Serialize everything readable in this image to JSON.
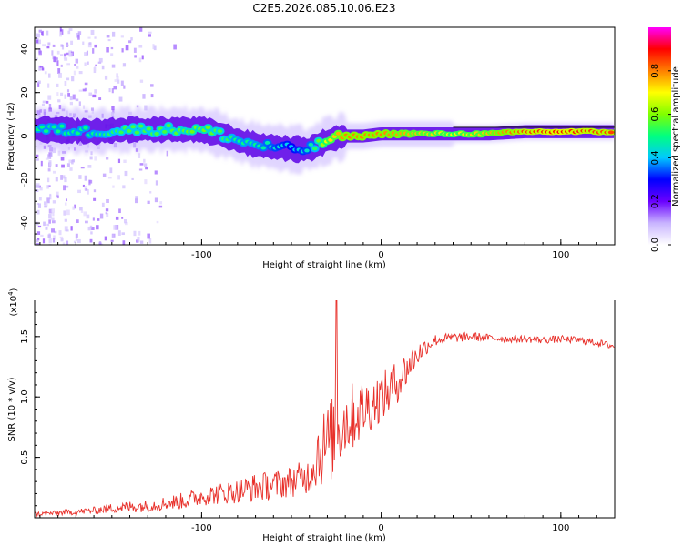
{
  "title": "C2E5.2026.085.10.06.E23",
  "chart_data": [
    {
      "type": "heatmap",
      "xlabel": "Height of straight line (km)",
      "ylabel": "Frequency (Hz)",
      "xlim": [
        -193,
        130
      ],
      "ylim": [
        -50,
        50
      ],
      "xticks": [
        -100,
        0,
        100
      ],
      "yticks": [
        -40,
        -20,
        0,
        20,
        40
      ],
      "colorbar": {
        "label": "Normalized spectral amplitude",
        "range": [
          0,
          1
        ],
        "ticks": [
          0.0,
          0.2,
          0.4,
          0.6,
          0.8
        ],
        "colors": [
          "#ffffff",
          "#c8b4ff",
          "#6a00ff",
          "#0000ff",
          "#00c8ff",
          "#00ff80",
          "#80ff00",
          "#ffff00",
          "#ff8000",
          "#ff0000",
          "#ff00ff"
        ]
      },
      "ridge": {
        "x": [
          -185,
          -160,
          -140,
          -120,
          -100,
          -90,
          -80,
          -70,
          -60,
          -50,
          -40,
          -30,
          -20,
          -10,
          0,
          20,
          40,
          60,
          80,
          100,
          120,
          130
        ],
        "freq": [
          3,
          2,
          3,
          3,
          3,
          1,
          -2,
          -4,
          -5,
          -6,
          -6,
          -2,
          0,
          0,
          1,
          1,
          1,
          1,
          2,
          2,
          2,
          2
        ],
        "amplitude": [
          0.5,
          0.5,
          0.55,
          0.55,
          0.6,
          0.55,
          0.5,
          0.5,
          0.45,
          0.4,
          0.45,
          0.7,
          0.8,
          0.8,
          0.8,
          0.75,
          0.7,
          0.75,
          0.85,
          0.9,
          0.85,
          0.85
        ]
      }
    },
    {
      "type": "line",
      "xlabel": "Height of straight line (km)",
      "ylabel": "SNR (10 * v/v)",
      "yscale_label": "(x10",
      "yscale_exp": "4",
      "yscale_close": ")",
      "xlim": [
        -193,
        130
      ],
      "ylim": [
        0,
        1.8
      ],
      "xticks": [
        -100,
        0,
        100
      ],
      "yticks": [
        0.5,
        1.0,
        1.5
      ],
      "ytick_labels": [
        "0.5",
        "1.0",
        "1.5"
      ],
      "color": "#e8302a",
      "series": [
        {
          "name": "SNR",
          "x": [
            -193,
            -180,
            -160,
            -150,
            -140,
            -130,
            -120,
            -110,
            -100,
            -90,
            -80,
            -70,
            -60,
            -50,
            -40,
            -35,
            -30,
            -25,
            -20,
            -15,
            -10,
            -5,
            0,
            5,
            10,
            15,
            20,
            25,
            30,
            40,
            50,
            60,
            70,
            80,
            90,
            100,
            110,
            120,
            130
          ],
          "values": [
            0.03,
            0.04,
            0.06,
            0.08,
            0.09,
            0.1,
            0.12,
            0.14,
            0.18,
            0.2,
            0.22,
            0.25,
            0.27,
            0.3,
            0.35,
            0.55,
            0.6,
            0.7,
            0.8,
            0.85,
            0.9,
            0.95,
            1.0,
            1.05,
            1.15,
            1.25,
            1.35,
            1.42,
            1.47,
            1.49,
            1.5,
            1.49,
            1.48,
            1.48,
            1.47,
            1.48,
            1.47,
            1.45,
            1.42
          ],
          "noise": [
            0.02,
            0.02,
            0.03,
            0.04,
            0.05,
            0.05,
            0.06,
            0.07,
            0.08,
            0.09,
            0.1,
            0.12,
            0.12,
            0.13,
            0.15,
            0.3,
            0.35,
            0.35,
            0.3,
            0.28,
            0.25,
            0.22,
            0.2,
            0.2,
            0.18,
            0.15,
            0.1,
            0.07,
            0.05,
            0.04,
            0.04,
            0.03,
            0.03,
            0.03,
            0.03,
            0.03,
            0.03,
            0.03,
            0.03
          ]
        }
      ],
      "peak": {
        "x": -25,
        "y": 1.8
      }
    }
  ]
}
